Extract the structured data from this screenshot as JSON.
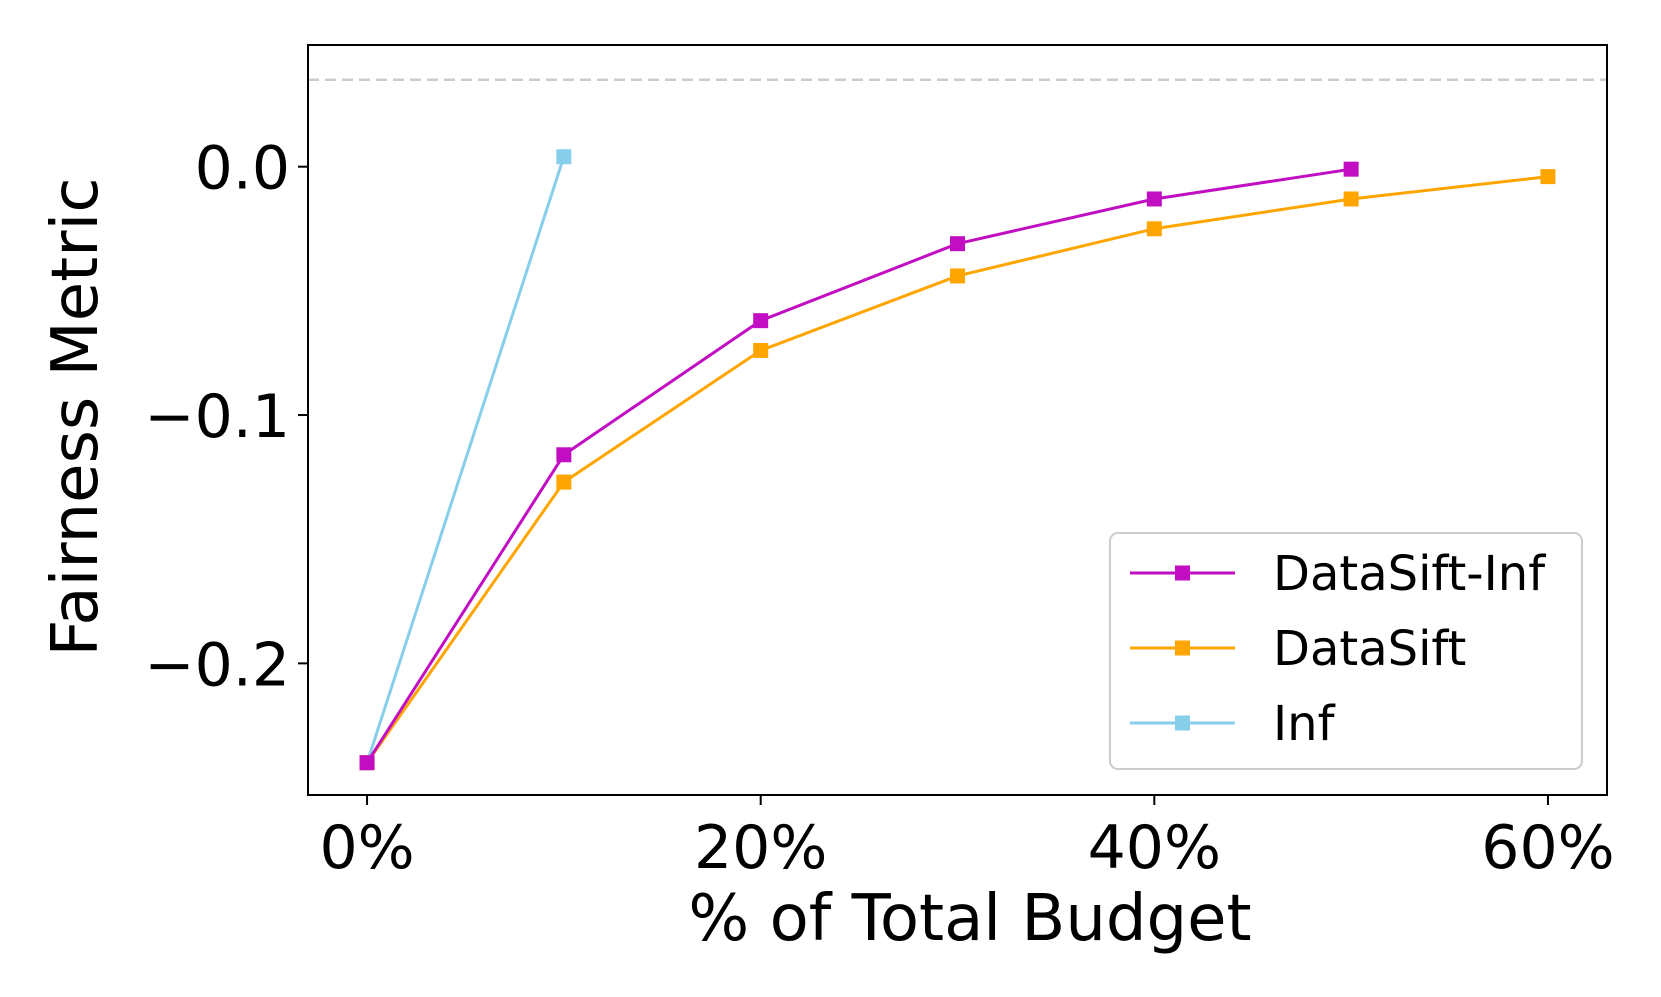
{
  "chart_data": {
    "type": "line",
    "title": "",
    "xlabel": "% of Total Budget",
    "ylabel": "Fairness Metric",
    "xlim": [
      -3,
      63
    ],
    "ylim": [
      -0.253,
      0.049
    ],
    "x_ticks": [
      0,
      20,
      40,
      60
    ],
    "x_tick_labels": [
      "0%",
      "20%",
      "40%",
      "60%"
    ],
    "y_ticks": [
      -0.2,
      -0.1,
      0.0
    ],
    "y_tick_labels": [
      "−0.2",
      "−0.1",
      "0.0"
    ],
    "reference_line": {
      "y": 0.035,
      "style": "dashed",
      "color": "#cccccc"
    },
    "grid": false,
    "legend_position": "lower-right",
    "series": [
      {
        "name": "DataSift-Inf",
        "color": "#c20ec2",
        "marker": "square",
        "x": [
          0,
          10,
          20,
          30,
          40,
          50
        ],
        "y": [
          -0.24,
          -0.116,
          -0.062,
          -0.031,
          -0.013,
          -0.001
        ]
      },
      {
        "name": "DataSift",
        "color": "#ffa500",
        "marker": "square",
        "x": [
          0,
          10,
          20,
          30,
          40,
          50,
          60
        ],
        "y": [
          -0.24,
          -0.127,
          -0.074,
          -0.044,
          -0.025,
          -0.013,
          -0.004
        ]
      },
      {
        "name": "Inf",
        "color": "#87ceeb",
        "marker": "square",
        "x": [
          0,
          10
        ],
        "y": [
          -0.24,
          0.004
        ]
      }
    ]
  }
}
